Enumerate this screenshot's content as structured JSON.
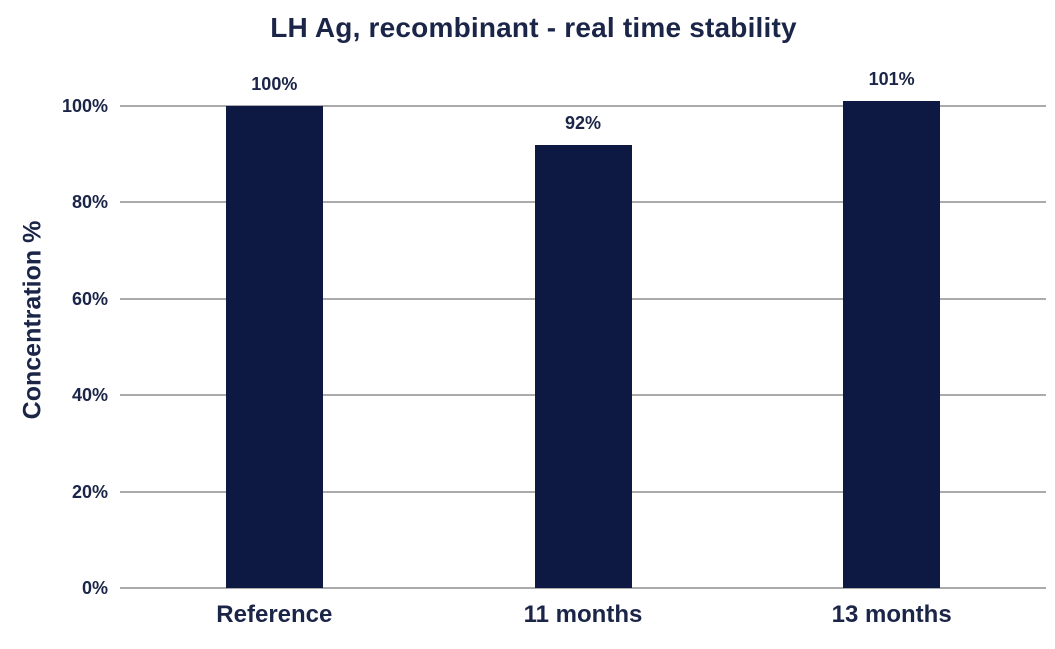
{
  "chart_data": {
    "type": "bar",
    "title": "LH Ag, recombinant - real time stability",
    "ylabel": "Concentration %",
    "xlabel": "",
    "categories": [
      "Reference",
      "11 months",
      "13 months"
    ],
    "values": [
      100,
      92,
      101
    ],
    "value_labels": [
      "100%",
      "92%",
      "101%"
    ],
    "yticks": [
      0,
      20,
      40,
      60,
      80,
      100
    ],
    "ytick_labels": [
      "0%",
      "20%",
      "40%",
      "60%",
      "80%",
      "100%"
    ],
    "ylim": [
      0,
      110
    ],
    "grid": true,
    "legend": false,
    "layout_hints": {
      "bar_label_position": "above",
      "gridlines": "horizontal"
    },
    "colors": {
      "bar": "#0d1942",
      "text": "#1b2548",
      "gridline": "#ababab",
      "background": "#ffffff"
    }
  }
}
